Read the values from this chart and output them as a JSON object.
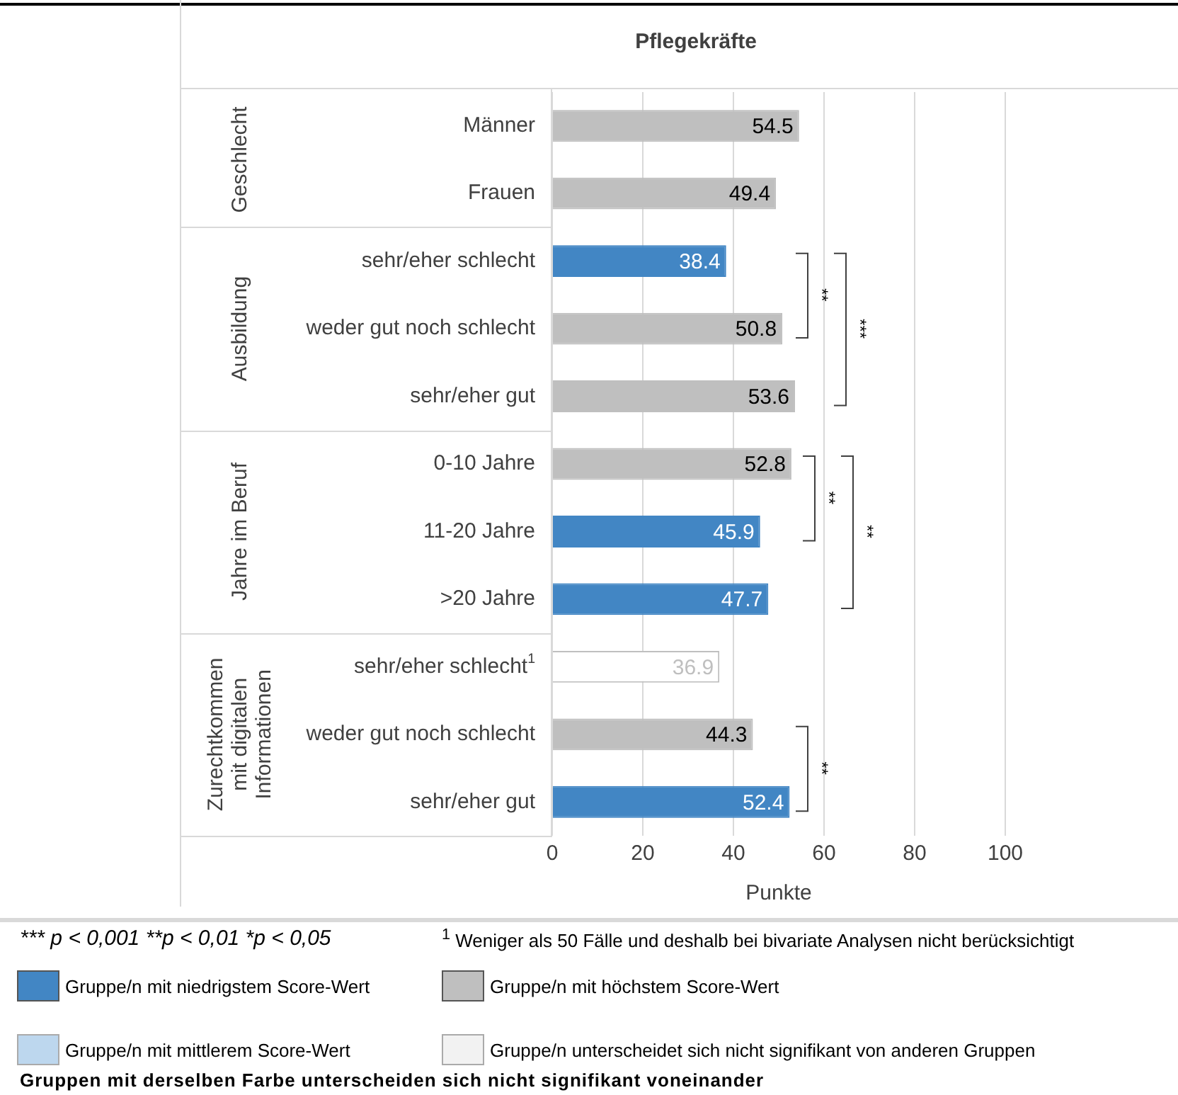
{
  "chart_data": {
    "type": "bar",
    "orientation": "horizontal",
    "title": "Pflegekräfte",
    "xlabel": "Punkte",
    "categories": [
      "Männer",
      "Frauen",
      "sehr/eher schlecht",
      "weder gut noch schlecht",
      "sehr/eher gut",
      "0-10 Jahre",
      "11-20 Jahre",
      ">20 Jahre",
      "sehr/eher schlecht$^{1}$",
      "weder gut noch schlecht",
      "sehr/eher gut"
    ],
    "values": [
      54.5,
      49.4,
      38.4,
      50.8,
      53.6,
      52.8,
      45.9,
      47.7,
      36.9,
      44.3,
      52.4
    ],
    "colors": [
      "#bfbfbf",
      "#bfbfbf",
      "#4286c4",
      "#bfbfbf",
      "#bfbfbf",
      "#bfbfbf",
      "#4286c4",
      "#4286c4",
      "#ffffff",
      "#bfbfbf",
      "#4286c4"
    ],
    "xlim": [
      0,
      100
    ],
    "xticks": [
      0,
      20,
      40,
      60,
      80,
      100
    ],
    "grid": "x",
    "data_labels": true,
    "annotations": [
      "Geschlecht",
      "Ausbildung",
      "Jahre im Beruf",
      "Zurechtkommen mit digitalen Informationen",
      "**",
      "***",
      "**",
      "**",
      "**",
      "*** p < 0,001  **p < 0,01  *p < 0,05",
      "$^{1}$ Weniger als 50 Fälle und deshalb bei bivariate Analysen nicht berücksichtigt",
      "Gruppe/n mit niedrigstem Score-Wert",
      "Gruppe/n mit höchstem Score-Wert",
      "Gruppe/n mit mittlerem Score-Wert",
      "Gruppe/n unterscheidet sich nicht signifikant von anderen Gruppen",
      "Gruppen mit derselben Farbe unterscheiden sich nicht signifikant voneinander"
    ]
  }
}
